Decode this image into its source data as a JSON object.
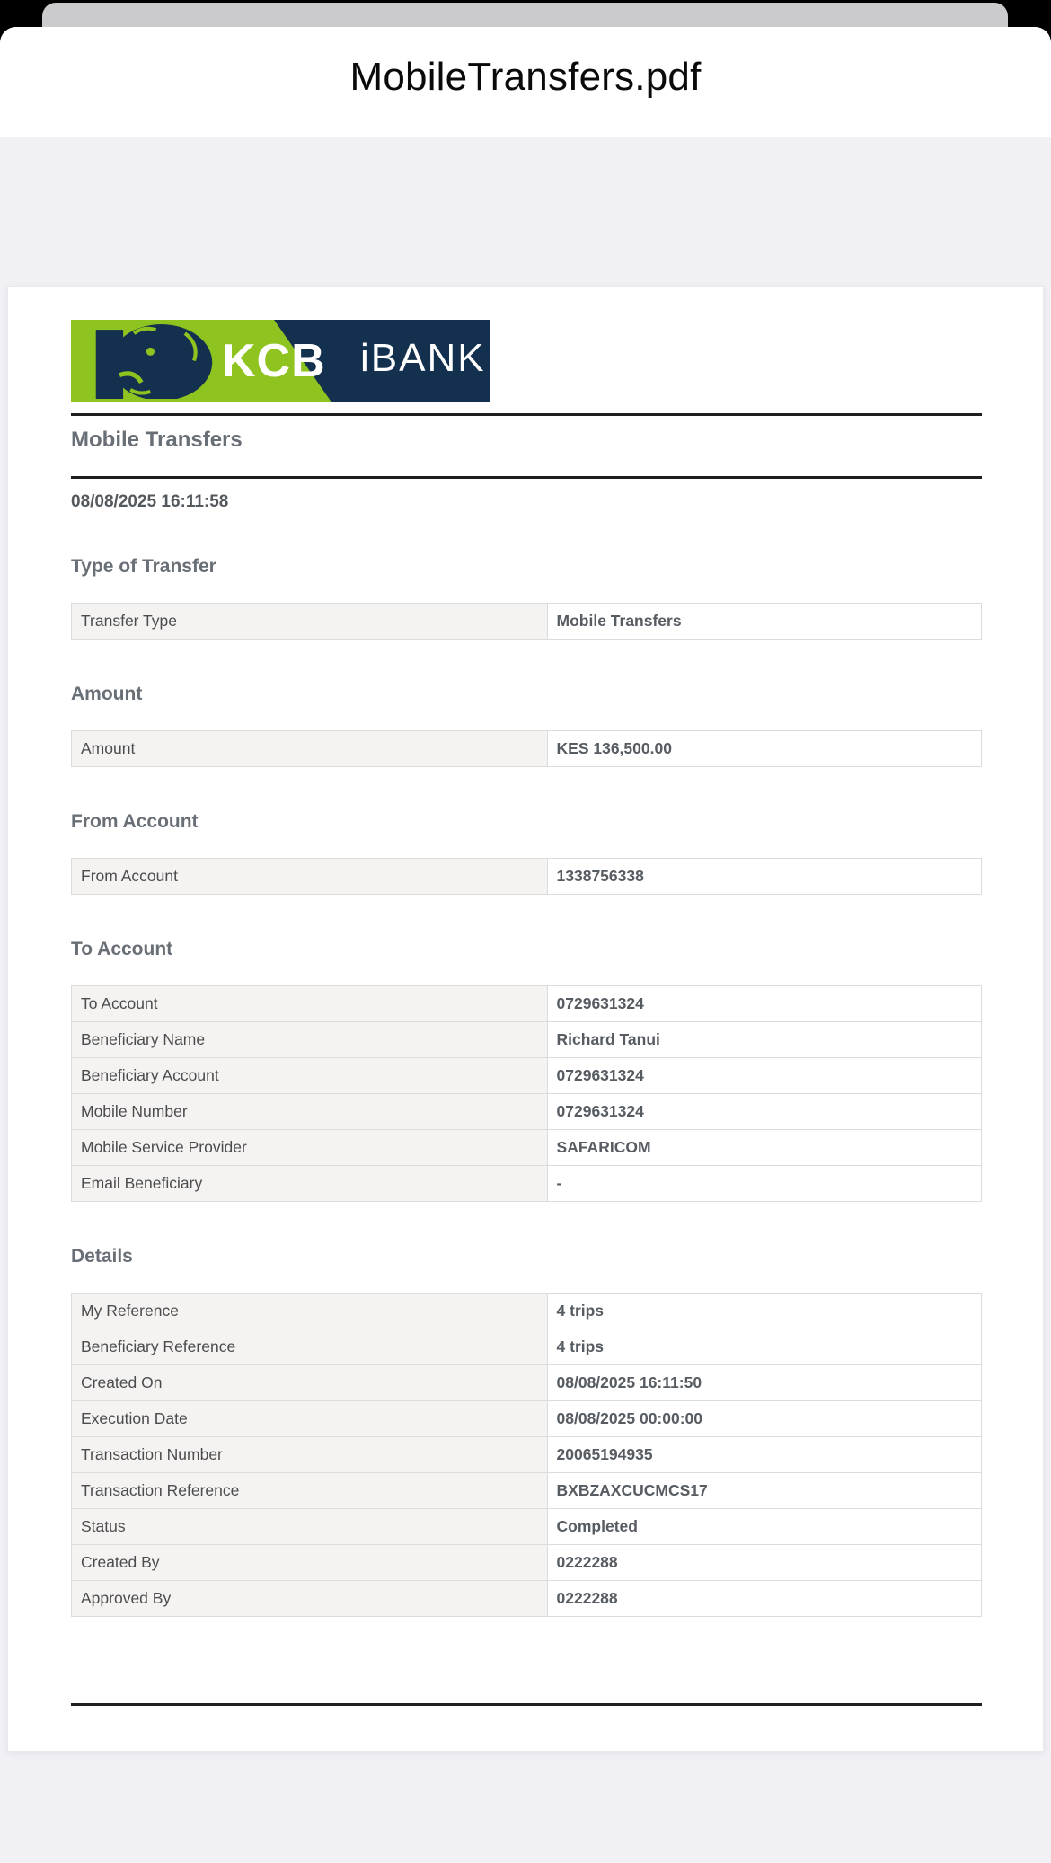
{
  "sheet": {
    "title": "MobileTransfers.pdf"
  },
  "pdf": {
    "logo": {
      "brand": "KCB",
      "product": "iBANK",
      "green": "#8fc31f",
      "navy": "#14304f"
    },
    "doc_title": "Mobile Transfers",
    "generated_at": "08/08/2025 16:11:58",
    "sections": [
      {
        "heading": "Type of Transfer",
        "rows": [
          {
            "label": "Transfer Type",
            "value": "Mobile Transfers"
          }
        ]
      },
      {
        "heading": "Amount",
        "rows": [
          {
            "label": "Amount",
            "value": "KES 136,500.00"
          }
        ]
      },
      {
        "heading": "From Account",
        "rows": [
          {
            "label": "From Account",
            "value": "1338756338"
          }
        ]
      },
      {
        "heading": "To Account",
        "rows": [
          {
            "label": "To Account",
            "value": "0729631324"
          },
          {
            "label": "Beneficiary Name",
            "value": "Richard Tanui"
          },
          {
            "label": "Beneficiary Account",
            "value": "0729631324"
          },
          {
            "label": "Mobile Number",
            "value": "0729631324"
          },
          {
            "label": "Mobile Service Provider",
            "value": "SAFARICOM"
          },
          {
            "label": "Email Beneficiary",
            "value": "-"
          }
        ]
      },
      {
        "heading": "Details",
        "rows": [
          {
            "label": "My Reference",
            "value": "4 trips"
          },
          {
            "label": "Beneficiary Reference",
            "value": "4 trips"
          },
          {
            "label": "Created On",
            "value": "08/08/2025 16:11:50"
          },
          {
            "label": "Execution Date",
            "value": "08/08/2025 00:00:00"
          },
          {
            "label": "Transaction Number",
            "value": "20065194935"
          },
          {
            "label": "Transaction Reference",
            "value": "BXBZAXCUCMCS17"
          },
          {
            "label": "Status",
            "value": "Completed"
          },
          {
            "label": "Created By",
            "value": "0222288"
          },
          {
            "label": "Approved By",
            "value": "0222288"
          }
        ]
      }
    ]
  }
}
